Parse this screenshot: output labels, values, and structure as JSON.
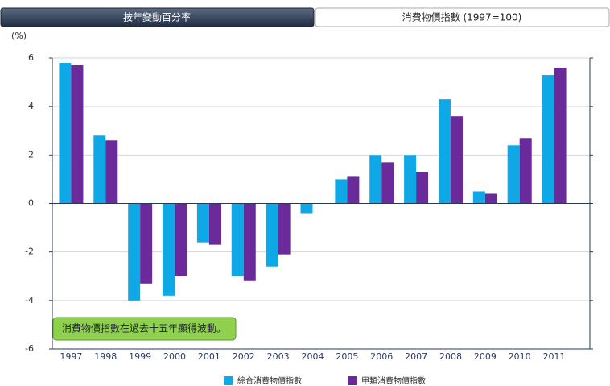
{
  "tabs": [
    "按年變動百分率",
    "消費物價指數 (1997=100)"
  ],
  "chart_data": {
    "type": "bar",
    "y_label": "(%)",
    "annotation": "消費物價指數在過去十五年顯得波動。",
    "categories": [
      "1997",
      "1998",
      "1999",
      "2000",
      "2001",
      "2002",
      "2003",
      "2004",
      "2005",
      "2006",
      "2007",
      "2008",
      "2009",
      "2010",
      "2011"
    ],
    "series": [
      {
        "name": "綜合消費物價指數",
        "color": "#0fa8e6",
        "values": [
          5.8,
          2.8,
          -4.0,
          -3.8,
          -1.6,
          -3.0,
          -2.6,
          -0.4,
          1.0,
          2.0,
          2.0,
          4.3,
          0.5,
          2.4,
          5.3
        ]
      },
      {
        "name": "甲類消費物價指數",
        "color": "#6a2a9a",
        "values": [
          5.7,
          2.6,
          -3.3,
          -3.0,
          -1.7,
          -3.2,
          -2.1,
          0,
          1.1,
          1.7,
          1.3,
          3.6,
          0.4,
          2.7,
          5.6
        ]
      }
    ],
    "ylim": [
      -6,
      6
    ],
    "yticks": [
      -6,
      -4,
      -2,
      0,
      2,
      4,
      6
    ],
    "grid": true,
    "legend": "bottom"
  }
}
